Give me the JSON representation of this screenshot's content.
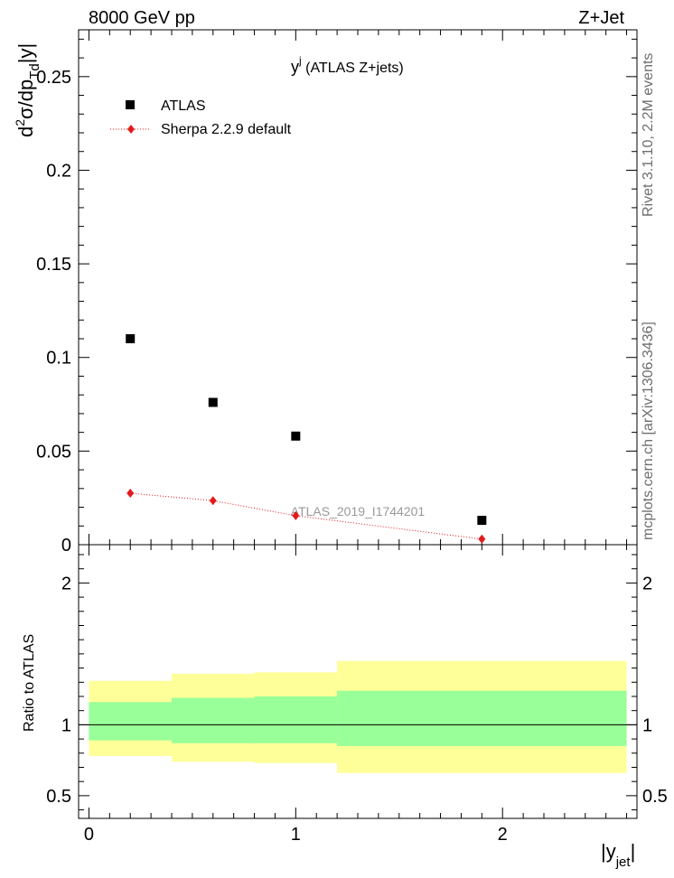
{
  "header": {
    "left": "8000 GeV pp",
    "right": "Z+Jet"
  },
  "side_labels": {
    "rivet": "Rivet 3.1.10,  2.2M events",
    "mcplots": "mcplots.cern.ch [arXiv:1306.3436]"
  },
  "chart_data": [
    {
      "type": "scatter",
      "title_main": "y",
      "title_sup": "j",
      "title_rest": " (ATLAS Z+jets)",
      "ylabel": "d²σ/dp_Td|y|",
      "xlim": [
        -0.05,
        2.65
      ],
      "ylim": [
        0,
        0.275
      ],
      "y_ticks": [
        {
          "value": 0,
          "label": "0"
        },
        {
          "value": 0.05,
          "label": "0.05"
        },
        {
          "value": 0.1,
          "label": "0.1"
        },
        {
          "value": 0.15,
          "label": "0.15"
        },
        {
          "value": 0.2,
          "label": "0.2"
        },
        {
          "value": 0.25,
          "label": "0.25"
        }
      ],
      "watermark": "ATLAS_2019_I1744201",
      "legend": [
        {
          "name": "ATLAS",
          "color": "#000000",
          "marker": "square"
        },
        {
          "name": "Sherpa 2.2.9 default",
          "color": "#e31a1c",
          "marker": "diamond"
        }
      ],
      "series": [
        {
          "name": "ATLAS",
          "x": [
            0.2,
            0.6,
            1.0,
            1.9
          ],
          "y": [
            0.11,
            0.076,
            0.058,
            0.013
          ]
        },
        {
          "name": "Sherpa 2.2.9 default",
          "x": [
            0.2,
            0.6,
            1.0,
            1.9
          ],
          "y": [
            0.0275,
            0.0235,
            0.0155,
            0.003
          ]
        }
      ]
    },
    {
      "type": "area",
      "ylabel": "Ratio to ATLAS",
      "xlabel_main": "|y",
      "xlabel_sub": "jet",
      "xlabel_end": "|",
      "xlim": [
        -0.05,
        2.65
      ],
      "ylim": [
        0.34,
        2.27
      ],
      "y_ticks": [
        {
          "value": 0.5,
          "label": "0.5"
        },
        {
          "value": 1,
          "label": "1"
        },
        {
          "value": 2,
          "label": "2"
        }
      ],
      "x_ticks": [
        {
          "value": 0,
          "label": "0"
        },
        {
          "value": 1,
          "label": "1"
        },
        {
          "value": 2,
          "label": "2"
        }
      ],
      "bins": [
        {
          "lo": 0.0,
          "hi": 0.4,
          "yellow": [
            0.78,
            1.31
          ],
          "green": [
            0.89,
            1.16
          ]
        },
        {
          "lo": 0.4,
          "hi": 0.8,
          "yellow": [
            0.74,
            1.36
          ],
          "green": [
            0.87,
            1.19
          ]
        },
        {
          "lo": 0.8,
          "hi": 1.2,
          "yellow": [
            0.73,
            1.37
          ],
          "green": [
            0.87,
            1.2
          ]
        },
        {
          "lo": 1.2,
          "hi": 2.6,
          "yellow": [
            0.66,
            1.45
          ],
          "green": [
            0.85,
            1.24
          ]
        }
      ],
      "colors": {
        "yellow": "#ffff99",
        "green": "#99ff99"
      }
    }
  ]
}
